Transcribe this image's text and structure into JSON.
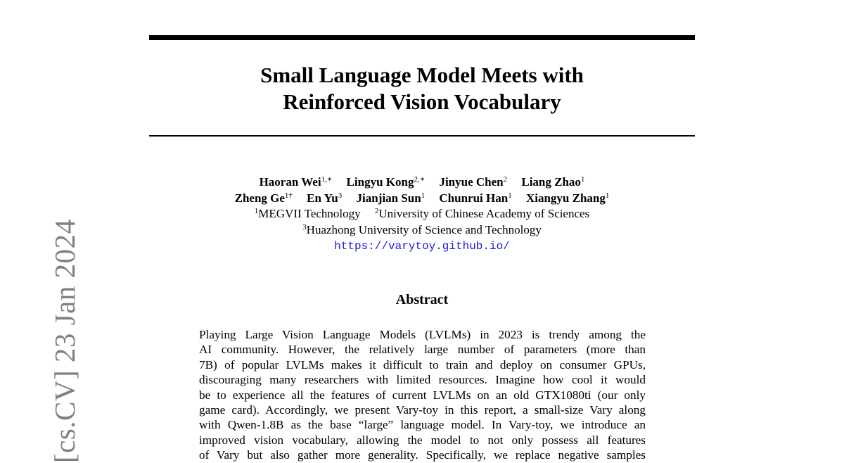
{
  "arxiv_stamp": "[cs.CV]   23 Jan 2024",
  "title_lines": [
    "Small Language Model Meets with",
    "Reinforced Vision Vocabulary"
  ],
  "authors": [
    {
      "name": "Haoran Wei",
      "sup": "1,∗"
    },
    {
      "name": "Lingyu Kong",
      "sup": "2,∗"
    },
    {
      "name": "Jinyue Chen",
      "sup": "2"
    },
    {
      "name": "Liang Zhao",
      "sup": "1"
    },
    {
      "name": "Zheng Ge",
      "sup": "1†"
    },
    {
      "name": "En Yu",
      "sup": "3"
    },
    {
      "name": "Jianjian Sun",
      "sup": "1"
    },
    {
      "name": "Chunrui Han",
      "sup": "1"
    },
    {
      "name": "Xiangyu Zhang",
      "sup": "1"
    }
  ],
  "affiliations": [
    {
      "sup": "1",
      "name": "MEGVII Technology"
    },
    {
      "sup": "2",
      "name": "University of Chinese Academy of Sciences"
    },
    {
      "sup": "3",
      "name": "Huazhong University of Science and Technology"
    }
  ],
  "url": "https://varytoy.github.io/",
  "abstract_heading": "Abstract",
  "abstract_lines": [
    "Playing Large Vision Language Models (LVLMs) in 2023 is trendy among the",
    "AI community. However, the relatively large number of parameters (more than",
    "7B) of popular LVLMs makes it difficult to train and deploy on consumer GPUs,",
    "discouraging many researchers with limited resources. Imagine how cool it would",
    "be to experience all the features of current LVLMs on an old GTX1080ti (our only",
    "game card). Accordingly, we present Vary-toy in this report, a small-size Vary along",
    "with Qwen-1.8B as the base “large” language model. In Vary-toy, we introduce an",
    "improved vision vocabulary, allowing the model to not only possess all features",
    "of Vary but also gather more generality. Specifically, we replace negative samples"
  ]
}
